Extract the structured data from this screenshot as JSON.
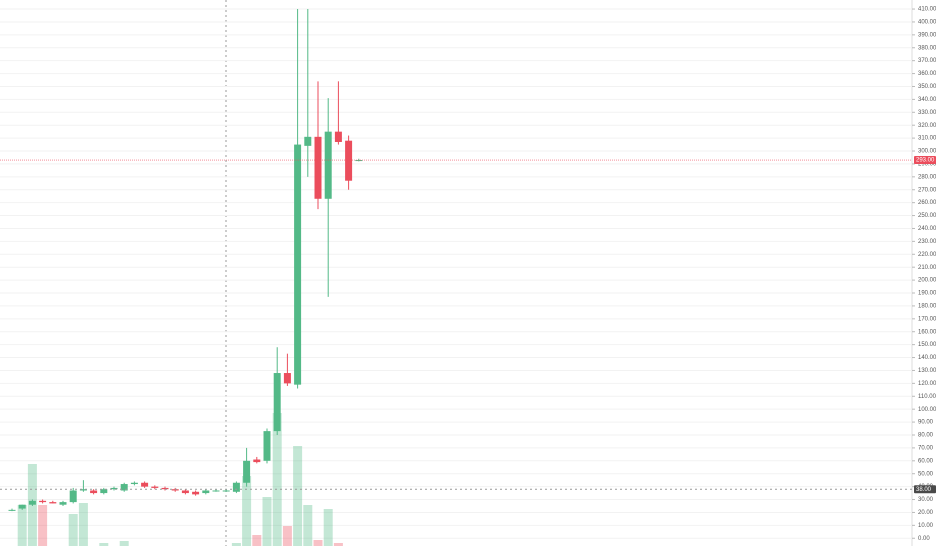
{
  "chart_data": {
    "type": "candlestick",
    "ylim": [
      -6,
      417
    ],
    "yticks": [
      {
        "value": 0,
        "label": "0.00"
      },
      {
        "value": 10,
        "label": "10.00"
      },
      {
        "value": 20,
        "label": "20.00"
      },
      {
        "value": 30,
        "label": "30.00"
      },
      {
        "value": 40,
        "label": "40.00"
      },
      {
        "value": 50,
        "label": "50.00"
      },
      {
        "value": 60,
        "label": "60.00"
      },
      {
        "value": 70,
        "label": "70.00"
      },
      {
        "value": 80,
        "label": "80.00"
      },
      {
        "value": 90,
        "label": "90.00"
      },
      {
        "value": 100,
        "label": "100.00"
      },
      {
        "value": 110,
        "label": "110.00"
      },
      {
        "value": 120,
        "label": "120.00"
      },
      {
        "value": 130,
        "label": "130.00"
      },
      {
        "value": 140,
        "label": "140.00"
      },
      {
        "value": 150,
        "label": "150.00"
      },
      {
        "value": 160,
        "label": "160.00"
      },
      {
        "value": 170,
        "label": "170.00"
      },
      {
        "value": 180,
        "label": "180.00"
      },
      {
        "value": 190,
        "label": "190.00"
      },
      {
        "value": 200,
        "label": "200.00"
      },
      {
        "value": 210,
        "label": "210.00"
      },
      {
        "value": 220,
        "label": "220.00"
      },
      {
        "value": 230,
        "label": "230.00"
      },
      {
        "value": 240,
        "label": "240.00"
      },
      {
        "value": 250,
        "label": "250.00"
      },
      {
        "value": 260,
        "label": "260.00"
      },
      {
        "value": 270,
        "label": "270.00"
      },
      {
        "value": 280,
        "label": "280.00"
      },
      {
        "value": 290,
        "label": "290.00"
      },
      {
        "value": 300,
        "label": "300.00"
      },
      {
        "value": 310,
        "label": "310.00"
      },
      {
        "value": 320,
        "label": "320.00"
      },
      {
        "value": 330,
        "label": "330.00"
      },
      {
        "value": 340,
        "label": "340.00"
      },
      {
        "value": 350,
        "label": "350.00"
      },
      {
        "value": 360,
        "label": "360.00"
      },
      {
        "value": 370,
        "label": "370.00"
      },
      {
        "value": 380,
        "label": "380.00"
      },
      {
        "value": 390,
        "label": "390.00"
      },
      {
        "value": 400,
        "label": "400.00"
      },
      {
        "value": 410,
        "label": "410.00"
      }
    ],
    "grid": true,
    "up_color": "#53b987",
    "down_color": "#eb4d5c",
    "open": [
      22,
      23,
      26,
      29,
      28,
      26,
      28,
      37,
      37,
      35,
      38,
      37,
      42,
      43,
      40,
      39,
      38,
      37,
      36,
      35,
      37,
      37,
      36,
      43,
      61,
      60,
      83,
      128,
      119,
      304,
      311,
      263,
      315,
      308,
      293
    ],
    "high": [
      23,
      26,
      30,
      30,
      29,
      29,
      39,
      45,
      38,
      39,
      40,
      43,
      44,
      44,
      41,
      40,
      39,
      38,
      37,
      38,
      38,
      38,
      44,
      70,
      63,
      85,
      148,
      143,
      410,
      410,
      354,
      341,
      354,
      312,
      294
    ],
    "low": [
      21,
      22,
      25,
      27,
      27,
      25,
      27,
      36,
      34,
      34,
      37,
      36,
      41,
      39,
      38,
      37,
      36,
      34,
      33,
      34,
      36,
      36,
      35,
      40,
      58,
      58,
      80,
      118,
      116,
      280,
      255,
      187,
      305,
      270,
      292
    ],
    "close": [
      22,
      26,
      29,
      28,
      27,
      28,
      37,
      38,
      35,
      38,
      39,
      42,
      43,
      40,
      39,
      38,
      37,
      35,
      34,
      37,
      37,
      37,
      43,
      60,
      59,
      83,
      128,
      120,
      305,
      311,
      263,
      315,
      307,
      277,
      293
    ],
    "volume": [
      0,
      41,
      82,
      41,
      0,
      0,
      32,
      43,
      0,
      3,
      0,
      5,
      0,
      0,
      0,
      0,
      0,
      0,
      0,
      0,
      0,
      0,
      3,
      70,
      11,
      49,
      133,
      20,
      100,
      41,
      6,
      37,
      3,
      0,
      0
    ],
    "last_price": {
      "value": 293,
      "label": "293.00"
    },
    "crosshair_price": {
      "value": 38,
      "label": "38.00"
    }
  }
}
